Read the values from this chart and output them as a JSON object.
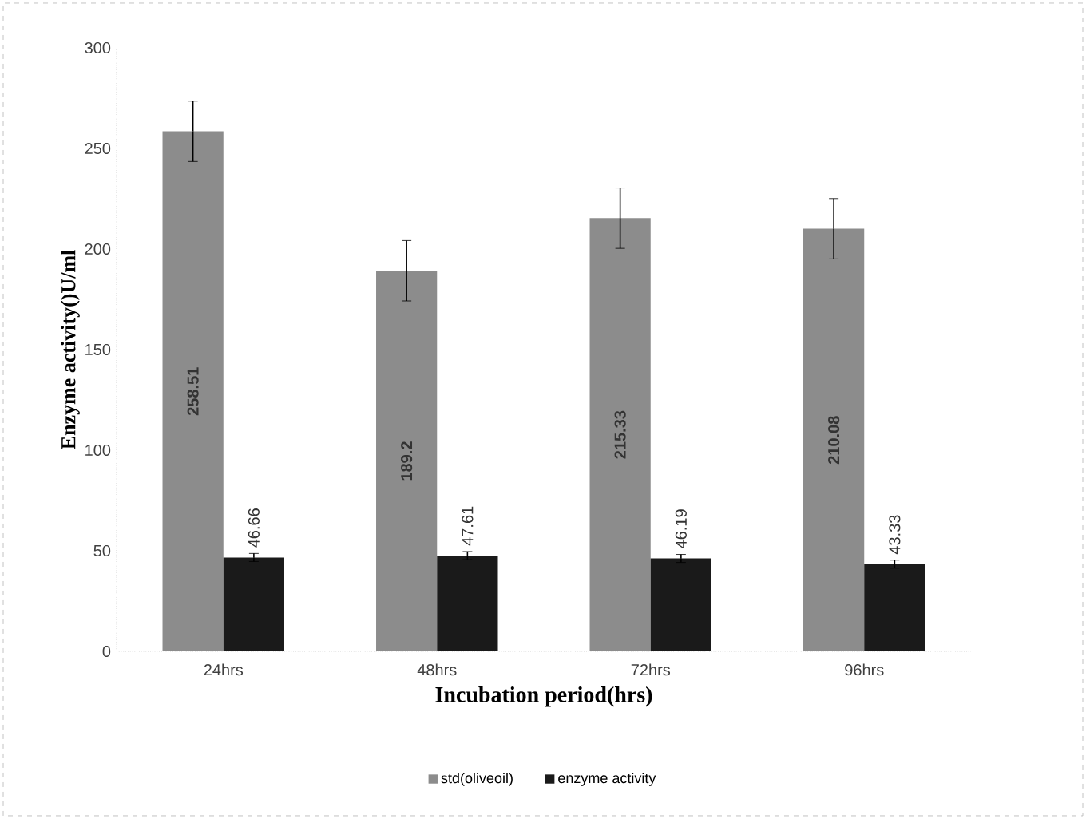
{
  "chart_data": {
    "type": "bar",
    "xlabel": "Incubation period(hrs)",
    "ylabel": "Enzyme activity()U/ml",
    "categories": [
      "24hrs",
      "48hrs",
      "72hrs",
      "96hrs"
    ],
    "series": [
      {
        "name": "std(oliveoil)",
        "color": "#8c8c8c",
        "values": [
          258.51,
          189.2,
          215.33,
          210.08
        ],
        "errors": [
          15,
          15,
          15,
          15
        ]
      },
      {
        "name": "enzyme activity",
        "color": "#1a1a1a",
        "values": [
          46.66,
          47.61,
          46.19,
          43.33
        ],
        "errors": [
          2,
          2,
          2,
          2
        ]
      }
    ],
    "ylim": [
      0,
      300
    ],
    "yticks": [
      0,
      50,
      100,
      150,
      200,
      250,
      300
    ],
    "data_labels": true,
    "legend": "bottom",
    "grid": false
  }
}
